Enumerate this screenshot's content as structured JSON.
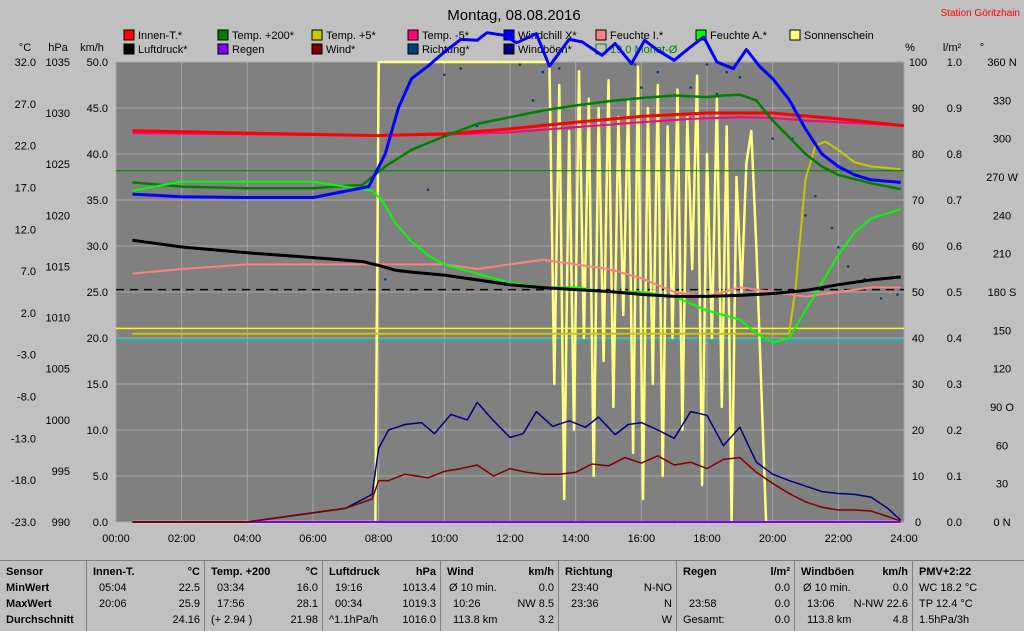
{
  "chart_data": {
    "type": "line",
    "title": "Montag, 08.08.2016",
    "station": "Station Göritzhain",
    "xlabel": "",
    "x_ticks": [
      "00:00",
      "02:00",
      "04:00",
      "06:00",
      "08:00",
      "10:00",
      "12:00",
      "14:00",
      "16:00",
      "18:00",
      "20:00",
      "22:00",
      "24:00"
    ],
    "axes": {
      "temp_c": {
        "label": "°C",
        "ticks": [
          "32.0",
          "27.0",
          "22.0",
          "17.0",
          "12.0",
          "7.0",
          "2.0",
          "-3.0",
          "-8.0",
          "-13.0",
          "-18.0",
          "-23.0"
        ],
        "range": [
          -23,
          32
        ]
      },
      "pressure_hpa": {
        "label": "hPa",
        "ticks": [
          "1035",
          "1030",
          "1025",
          "1020",
          "1015",
          "1010",
          "1005",
          "1000",
          "995",
          "990"
        ],
        "range": [
          990,
          1037.5
        ]
      },
      "wind_kmh": {
        "label": "km/h",
        "ticks": [
          "50.0",
          "45.0",
          "40.0",
          "35.0",
          "30.0",
          "25.0",
          "20.0",
          "15.0",
          "10.0",
          "5.0",
          "0.0"
        ],
        "range": [
          0,
          50
        ]
      },
      "humidity_pct": {
        "label": "%",
        "ticks": [
          "100",
          "90",
          "80",
          "70",
          "60",
          "50",
          "40",
          "30",
          "20",
          "10",
          "0"
        ],
        "range": [
          0,
          100
        ]
      },
      "rain_lm2": {
        "label": "l/m²",
        "ticks": [
          "1.0",
          "0.9",
          "0.8",
          "0.7",
          "0.6",
          "0.5",
          "0.4",
          "0.3",
          "0.2",
          "0.1",
          "0.0"
        ],
        "range": [
          0,
          1
        ]
      },
      "direction": {
        "label": "°",
        "ticks": [
          "360 N",
          "330",
          "300",
          "270 W",
          "240",
          "210",
          "180 S",
          "150",
          "120",
          "90 O",
          "60",
          "30",
          "0 N"
        ],
        "range": [
          0,
          360
        ]
      }
    },
    "legend": [
      {
        "name": "Innen-T.*",
        "color": "#ff0000"
      },
      {
        "name": "Temp. +200*",
        "color": "#008000"
      },
      {
        "name": "Temp. +5*",
        "color": "#c8c800"
      },
      {
        "name": "Temp. -5*",
        "color": "#ff0080"
      },
      {
        "name": "Windchill X*",
        "color": "#0000ff"
      },
      {
        "name": "Feuchte I.*",
        "color": "#ff8080"
      },
      {
        "name": "Feuchte A.*",
        "color": "#00ff00"
      },
      {
        "name": "Sonnenschein",
        "color": "#ffff80"
      },
      {
        "name": "Luftdruck*",
        "color": "#000000"
      },
      {
        "name": "Regen",
        "color": "#8000ff"
      },
      {
        "name": "Wind*",
        "color": "#800000"
      },
      {
        "name": "Richtung*",
        "color": "#004080"
      },
      {
        "name": "Windböen*",
        "color": "#000080"
      },
      {
        "name": "19.0 Monat-Ø",
        "color": "#008000"
      }
    ],
    "series": [
      {
        "name": "Innen-T.*",
        "axis": "temp_c",
        "x": [
          0.5,
          4,
          8,
          10,
          12,
          14,
          16,
          18,
          20,
          22,
          24
        ],
        "y": [
          23.8,
          23.5,
          23.2,
          23.4,
          24.0,
          24.8,
          25.5,
          25.9,
          25.9,
          25.2,
          24.4
        ]
      },
      {
        "name": "Temp. +200*",
        "axis": "temp_c",
        "x": [
          0.5,
          2,
          4,
          6,
          7.5,
          8.2,
          9,
          10,
          11,
          12,
          13,
          14,
          15,
          16,
          17,
          18,
          18.5,
          19,
          19.5,
          20,
          21,
          21.5,
          22,
          23,
          23.9
        ],
        "y": [
          17.6,
          17.1,
          16.9,
          16.9,
          17.3,
          19.5,
          21.5,
          23.1,
          24.6,
          25.4,
          26.2,
          26.8,
          27.3,
          27.7,
          28.0,
          27.8,
          28.0,
          28.1,
          27.4,
          25.0,
          21.0,
          19.5,
          18.5,
          17.5,
          16.8
        ]
      },
      {
        "name": "Temp. +5*",
        "axis": "temp_c",
        "x": [
          0.5,
          20.5,
          20.7,
          21,
          21.3,
          21.6,
          22,
          22.5,
          23,
          23.9
        ],
        "y": [
          -0.5,
          -0.5,
          5,
          18,
          22,
          22.5,
          21.5,
          20.0,
          19.5,
          19.2
        ]
      },
      {
        "name": "Temp. -5*",
        "axis": "temp_c",
        "x": [
          0.5,
          8,
          9,
          10,
          12,
          14,
          16,
          17.5,
          19,
          20,
          21,
          22,
          23,
          23.9
        ],
        "y": [
          23.5,
          23.2,
          23.3,
          23.3,
          23.6,
          24.2,
          24.8,
          25.2,
          25.4,
          25.3,
          25.0,
          24.8,
          24.6,
          24.4
        ]
      },
      {
        "name": "Windchill X*",
        "axis": "temp_c",
        "x": [
          0.5,
          2,
          4,
          6,
          7.7,
          8.2,
          8.6,
          9,
          9.5,
          10,
          10.5,
          11,
          11.3,
          11.8,
          12.2,
          12.8,
          13.2,
          13.8,
          14.2,
          14.8,
          15.2,
          15.7,
          16.1,
          16.5,
          17.0,
          17.5,
          17.9,
          18.3,
          18.8,
          19.2,
          19.6,
          20.0,
          20.5,
          21,
          21.5,
          22,
          22.5,
          23,
          23.9
        ],
        "y": [
          16.2,
          15.9,
          15.8,
          15.8,
          17.1,
          21,
          26.5,
          30,
          31.5,
          33.2,
          34.7,
          34.6,
          35.5,
          35.2,
          34.3,
          35.4,
          31.5,
          34.7,
          34.4,
          32.8,
          34.2,
          31.8,
          34.6,
          33.4,
          32.2,
          33.8,
          35.0,
          32.0,
          31.2,
          33.5,
          31.5,
          30.0,
          27.5,
          24.0,
          21.0,
          19.5,
          18.5,
          17.9,
          17.6
        ]
      },
      {
        "name": "Feuchte I.*",
        "axis": "humidity_pct",
        "x": [
          0.5,
          2,
          4,
          6,
          8,
          10,
          11,
          12,
          13,
          14,
          15,
          16,
          17,
          18,
          19,
          20,
          21,
          22,
          23,
          23.9
        ],
        "y": [
          54,
          55,
          56,
          56,
          56,
          56,
          55,
          56,
          57,
          56,
          55,
          53,
          50,
          49,
          51,
          50,
          49,
          50,
          51,
          51
        ]
      },
      {
        "name": "Feuchte A.*",
        "axis": "humidity_pct",
        "x": [
          0.5,
          2,
          4,
          6,
          7.8,
          8.1,
          8.5,
          9,
          9.5,
          10,
          11,
          12,
          13,
          14,
          15,
          16,
          17,
          18,
          18.5,
          19,
          19.5,
          20,
          20.5,
          21,
          21.5,
          22,
          22.5,
          23,
          23.9
        ],
        "y": [
          72,
          74,
          74,
          74,
          72,
          70,
          65,
          61,
          58,
          56,
          54,
          52,
          51,
          51,
          50,
          50,
          49,
          46,
          45,
          44,
          41,
          39,
          40,
          46,
          52,
          58,
          63,
          66,
          68
        ]
      },
      {
        "name": "Luftdruck*",
        "axis": "pressure_hpa",
        "x": [
          0.5,
          2,
          4,
          6,
          7.5,
          8,
          8.5,
          9,
          10,
          11,
          12,
          13,
          14,
          15,
          16,
          17,
          18,
          19,
          20,
          21,
          22,
          23,
          23.9
        ],
        "y": [
          1019.1,
          1018.4,
          1017.8,
          1017.3,
          1016.9,
          1016.5,
          1016.0,
          1015.8,
          1015.5,
          1015.0,
          1014.5,
          1014.2,
          1014.0,
          1013.8,
          1013.5,
          1013.3,
          1013.3,
          1013.4,
          1013.6,
          1013.9,
          1014.5,
          1015.0,
          1015.3
        ]
      },
      {
        "name": "Wind*",
        "axis": "wind_kmh",
        "x": [
          0.5,
          3,
          4,
          7,
          7.8,
          8,
          8.3,
          8.8,
          9.5,
          10,
          10.5,
          11,
          11.5,
          12,
          12.5,
          13,
          13.5,
          14,
          14.5,
          15,
          15.5,
          16,
          16.5,
          17,
          17.5,
          18,
          18.5,
          19,
          19.5,
          20,
          20.5,
          21,
          21.5,
          22,
          22.5,
          23,
          23.5,
          23.9
        ],
        "y": [
          0,
          0,
          0,
          1.5,
          2.5,
          4.5,
          4.5,
          5.2,
          4.8,
          5.5,
          5.8,
          6.2,
          5.0,
          5.8,
          5.4,
          5.2,
          5.2,
          5.4,
          6.3,
          6.1,
          7.0,
          6.4,
          7.2,
          6.2,
          6.5,
          5.8,
          6.8,
          7.0,
          5.4,
          4.2,
          3.1,
          2.2,
          1.6,
          1.3,
          1.3,
          1.2,
          0.6,
          0.1
        ]
      },
      {
        "name": "Windböen*",
        "axis": "wind_kmh",
        "x": [
          0.5,
          3,
          4,
          7,
          7.8,
          8,
          8.3,
          8.8,
          9.3,
          9.7,
          10.2,
          10.7,
          11,
          11.5,
          12,
          12.4,
          12.8,
          13.3,
          13.8,
          14.3,
          14.7,
          15.2,
          15.6,
          16.0,
          16.5,
          17.0,
          17.5,
          18.0,
          18.5,
          19.0,
          19.5,
          20.0,
          20.5,
          21.0,
          21.5,
          22.0,
          22.5,
          23.0,
          23.5,
          23.9
        ],
        "y": [
          0,
          0,
          0,
          1.5,
          3.0,
          8.0,
          10.0,
          10.6,
          10.8,
          9.6,
          11.7,
          11.1,
          13.0,
          11.0,
          9.2,
          9.6,
          12.0,
          10.4,
          11.0,
          10.3,
          11.4,
          9.5,
          10.6,
          10.8,
          10.0,
          9.1,
          12.0,
          11.6,
          8.3,
          10.3,
          6.5,
          5.2,
          4.5,
          3.9,
          3.3,
          3.1,
          3.0,
          2.7,
          1.5,
          0.2
        ]
      },
      {
        "name": "Sonnenschein",
        "axis": "humidity_pct",
        "x": [
          0.5,
          7.9,
          8.0,
          13.2,
          13.35,
          13.5,
          13.65,
          13.8,
          13.95,
          14.1,
          14.25,
          14.4,
          14.55,
          14.7,
          14.85,
          15.0,
          15.15,
          15.3,
          15.45,
          15.6,
          15.75,
          15.9,
          16.05,
          16.2,
          16.35,
          16.5,
          16.65,
          16.8,
          16.95,
          17.1,
          17.25,
          17.4,
          17.55,
          17.7,
          17.85,
          18.0,
          18.15,
          18.3,
          18.45,
          18.6,
          18.75,
          18.9,
          19.05,
          19.2,
          19.35,
          19.5,
          19.7,
          19.8,
          20.5,
          23.9
        ],
        "y": [
          0,
          0,
          100,
          100,
          30,
          95,
          5,
          85,
          20,
          98,
          40,
          92,
          10,
          90,
          35,
          96,
          25,
          88,
          45,
          92,
          15,
          99,
          5,
          90,
          30,
          95,
          10,
          86,
          40,
          94,
          20,
          88,
          55,
          97,
          8,
          80,
          40,
          92,
          25,
          86,
          0,
          75,
          50,
          78,
          85,
          60,
          20,
          0,
          0,
          0
        ]
      },
      {
        "name": "Regen",
        "axis": "rain_lm2",
        "x": [
          0.5,
          23.9
        ],
        "y": [
          0,
          0
        ]
      },
      {
        "name": "19.0 Monat-Ø",
        "axis": "temp_c",
        "x": [
          0,
          24
        ],
        "y": [
          19.0,
          19.0
        ]
      }
    ],
    "reference_lines": [
      {
        "axis": "pressure_hpa",
        "value": 1014.0,
        "style": "dashed",
        "color": "#000000"
      },
      {
        "axis": "pressure_hpa",
        "value": 1010.0,
        "color": "#ffff00"
      },
      {
        "axis": "humidity_pct",
        "value": 39.5,
        "color": "#00c0c0"
      }
    ],
    "direction_points": [
      [
        10,
        350
      ],
      [
        10.5,
        355
      ],
      [
        11.5,
        0
      ],
      [
        12.3,
        358
      ],
      [
        13,
        352
      ],
      [
        13.5,
        355
      ],
      [
        14.2,
        0
      ],
      [
        15,
        345
      ],
      [
        15.8,
        358
      ],
      [
        16.5,
        352
      ],
      [
        17,
        0
      ],
      [
        17.5,
        340
      ],
      [
        18,
        358
      ],
      [
        18.6,
        352
      ],
      [
        19,
        348
      ],
      [
        19.5,
        330
      ],
      [
        20,
        300
      ],
      [
        20.6,
        300
      ],
      [
        21.3,
        255
      ],
      [
        21.8,
        230
      ],
      [
        22.3,
        200
      ],
      [
        22.8,
        190
      ],
      [
        23.3,
        175
      ],
      [
        23.8,
        178
      ],
      [
        8.2,
        190
      ],
      [
        9,
        220
      ],
      [
        9.5,
        260
      ],
      [
        11,
        310
      ],
      [
        12.7,
        330
      ],
      [
        14.7,
        320
      ],
      [
        16,
        340
      ],
      [
        18.3,
        335
      ],
      [
        21,
        240
      ],
      [
        22,
        215
      ]
    ]
  },
  "stats_table": {
    "headers": {
      "sensor": "Sensor",
      "innen": "Innen-T.",
      "innen_unit": "°C",
      "temp": "Temp. +200",
      "temp_unit": "°C",
      "druck": "Luftdruck",
      "druck_unit": "hPa",
      "wind": "Wind",
      "wind_unit": "km/h",
      "richtung": "Richtung",
      "regen": "Regen",
      "regen_unit": "l/m²",
      "boeen": "Windböen",
      "boeen_unit": "km/h",
      "pmv": "PMV+2:22"
    },
    "rows": [
      "MinWert",
      "MaxWert",
      "Durchschnitt"
    ],
    "innen": [
      [
        "05:04",
        "22.5"
      ],
      [
        "20:06",
        "25.9"
      ],
      [
        "",
        "24.16"
      ]
    ],
    "temp": [
      [
        "03:34",
        "16.0"
      ],
      [
        "17:56",
        "28.1"
      ],
      [
        "(+ 2.94 )",
        "21.98"
      ]
    ],
    "druck": [
      [
        "19:16",
        "1013.4"
      ],
      [
        "00:34",
        "1019.3"
      ],
      [
        "^1.1hPa/h",
        "1016.0"
      ]
    ],
    "wind": [
      [
        "Ø 10 min.",
        "0.0"
      ],
      [
        "10:26",
        "NW 8.5"
      ],
      [
        "113.8 km",
        "3.2"
      ]
    ],
    "richtung": [
      [
        "23:40",
        "N-NO"
      ],
      [
        "23:36",
        "N"
      ],
      [
        "",
        "W"
      ]
    ],
    "regen": [
      [
        "",
        ""
      ],
      [
        "23:58",
        "0.0"
      ],
      [
        "Gesamt:",
        "0.0"
      ]
    ],
    "regen_min": "0.0",
    "boeen": [
      [
        "Ø 10 min.",
        "0.0"
      ],
      [
        "13:06",
        "N-NW 22.6"
      ],
      [
        "113.8 km",
        "4.8"
      ]
    ],
    "pmv": [
      "WC 18.2 °C",
      "TP 12.4 °C",
      "1.5hPa/3h"
    ]
  }
}
